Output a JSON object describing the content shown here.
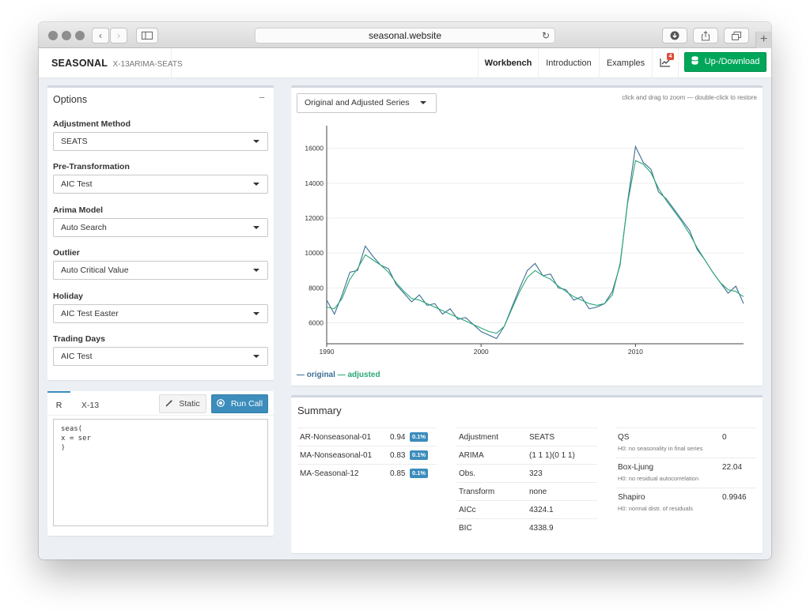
{
  "browser": {
    "url": "seasonal.website"
  },
  "navbar": {
    "brand": "SEASONAL",
    "brand_sub": "X-13ARIMA-SEATS",
    "links": [
      "Workbench",
      "Introduction",
      "Examples"
    ],
    "notification_count": "4",
    "updown_label": "Up-/Download"
  },
  "options": {
    "title": "Options",
    "collapse": "−",
    "fields": [
      {
        "label": "Adjustment Method",
        "value": "SEATS"
      },
      {
        "label": "Pre-Transformation",
        "value": "AIC Test"
      },
      {
        "label": "Arima Model",
        "value": "Auto Search"
      },
      {
        "label": "Outlier",
        "value": "Auto Critical Value"
      },
      {
        "label": "Holiday",
        "value": "AIC Test Easter"
      },
      {
        "label": "Trading Days",
        "value": "AIC Test"
      }
    ]
  },
  "call": {
    "tabs": [
      "R",
      "X-13"
    ],
    "static_label": "Static",
    "run_label": "Run Call",
    "code_lines": [
      "seas(",
      "x = ser",
      ")"
    ]
  },
  "plot": {
    "series_select": "Original and Adjusted Series",
    "hint": "click and drag to zoom — double-click to restore",
    "legend_original": "— original",
    "legend_adjusted": "— adjusted"
  },
  "colors": {
    "original": "#3c6e94",
    "adjusted": "#2aa876",
    "primary": "#3c8dbc",
    "success": "#00a65a"
  },
  "chart_data": {
    "type": "line",
    "x_ticks": [
      1990,
      2000,
      2010
    ],
    "y_ticks": [
      6000,
      8000,
      10000,
      12000,
      14000,
      16000
    ],
    "xlim": [
      1990,
      2017
    ],
    "ylim": [
      4800,
      17300
    ],
    "grid": "horizontal",
    "legend_position": "bottom-left",
    "series": [
      {
        "name": "original",
        "x": [
          1990.0,
          1990.5,
          1991.0,
          1991.5,
          1992.0,
          1992.5,
          1993.0,
          1993.5,
          1994.0,
          1994.5,
          1995.0,
          1995.5,
          1996.0,
          1996.5,
          1997.0,
          1997.5,
          1998.0,
          1998.5,
          1999.0,
          1999.5,
          2000.0,
          2000.5,
          2001.0,
          2001.5,
          2002.0,
          2002.5,
          2003.0,
          2003.5,
          2004.0,
          2004.5,
          2005.0,
          2005.5,
          2006.0,
          2006.5,
          2007.0,
          2007.5,
          2008.0,
          2008.5,
          2009.0,
          2009.5,
          2010.0,
          2010.5,
          2011.0,
          2011.5,
          2012.0,
          2012.5,
          2013.0,
          2013.5,
          2014.0,
          2014.5,
          2015.0,
          2015.5,
          2016.0,
          2016.5,
          2017.0
        ],
        "values": [
          7300,
          6500,
          7600,
          8900,
          9000,
          10400,
          9800,
          9300,
          9100,
          8200,
          7700,
          7200,
          7600,
          7000,
          7100,
          6500,
          6800,
          6200,
          6300,
          5900,
          5500,
          5300,
          5100,
          5800,
          6900,
          8000,
          9000,
          9400,
          8700,
          8800,
          8000,
          7900,
          7300,
          7500,
          6800,
          6900,
          7100,
          7800,
          9300,
          13000,
          16100,
          15200,
          14800,
          13500,
          13100,
          12500,
          11900,
          11300,
          10200,
          9600,
          8900,
          8300,
          7700,
          8100,
          7100
        ]
      },
      {
        "name": "adjusted",
        "x": [
          1990.0,
          1990.5,
          1991.0,
          1991.5,
          1992.0,
          1992.5,
          1993.0,
          1993.5,
          1994.0,
          1994.5,
          1995.0,
          1995.5,
          1996.0,
          1996.5,
          1997.0,
          1997.5,
          1998.0,
          1998.5,
          1999.0,
          1999.5,
          2000.0,
          2000.5,
          2001.0,
          2001.5,
          2002.0,
          2002.5,
          2003.0,
          2003.5,
          2004.0,
          2004.5,
          2005.0,
          2005.5,
          2006.0,
          2006.5,
          2007.0,
          2007.5,
          2008.0,
          2008.5,
          2009.0,
          2009.5,
          2010.0,
          2010.5,
          2011.0,
          2011.5,
          2012.0,
          2012.5,
          2013.0,
          2013.5,
          2014.0,
          2014.5,
          2015.0,
          2015.5,
          2016.0,
          2016.5,
          2017.0
        ],
        "values": [
          6900,
          6800,
          7400,
          8500,
          9100,
          9900,
          9600,
          9300,
          8900,
          8300,
          7800,
          7400,
          7300,
          7100,
          6900,
          6700,
          6500,
          6300,
          6100,
          5900,
          5700,
          5500,
          5400,
          5800,
          6800,
          7800,
          8600,
          9000,
          8700,
          8500,
          8100,
          7800,
          7500,
          7300,
          7100,
          7000,
          7100,
          7600,
          9400,
          12900,
          15300,
          15100,
          14600,
          13700,
          13000,
          12400,
          11800,
          11100,
          10300,
          9600,
          8900,
          8300,
          7900,
          7800,
          7500
        ]
      }
    ]
  },
  "summary": {
    "title": "Summary",
    "coefficients": [
      {
        "name": "AR-Nonseasonal-01",
        "value": "0.94",
        "p": "0.1%"
      },
      {
        "name": "MA-Nonseasonal-01",
        "value": "0.83",
        "p": "0.1%"
      },
      {
        "name": "MA-Seasonal-12",
        "value": "0.85",
        "p": "0.1%"
      }
    ],
    "model": [
      {
        "name": "Adjustment",
        "value": "SEATS"
      },
      {
        "name": "ARIMA",
        "value": "(1 1 1)(0 1 1)"
      },
      {
        "name": "Obs.",
        "value": "323"
      },
      {
        "name": "Transform",
        "value": "none"
      },
      {
        "name": "AICc",
        "value": "4324.1"
      },
      {
        "name": "BIC",
        "value": "4338.9"
      }
    ],
    "tests": [
      {
        "name": "QS",
        "desc": "H0: no seasonality in final series",
        "value": "0"
      },
      {
        "name": "Box-Ljung",
        "desc": "H0: no residual autocorrelation",
        "value": "22.04"
      },
      {
        "name": "Shapiro",
        "desc": "H0: normal distr. of residuals",
        "value": "0.9946"
      }
    ]
  }
}
